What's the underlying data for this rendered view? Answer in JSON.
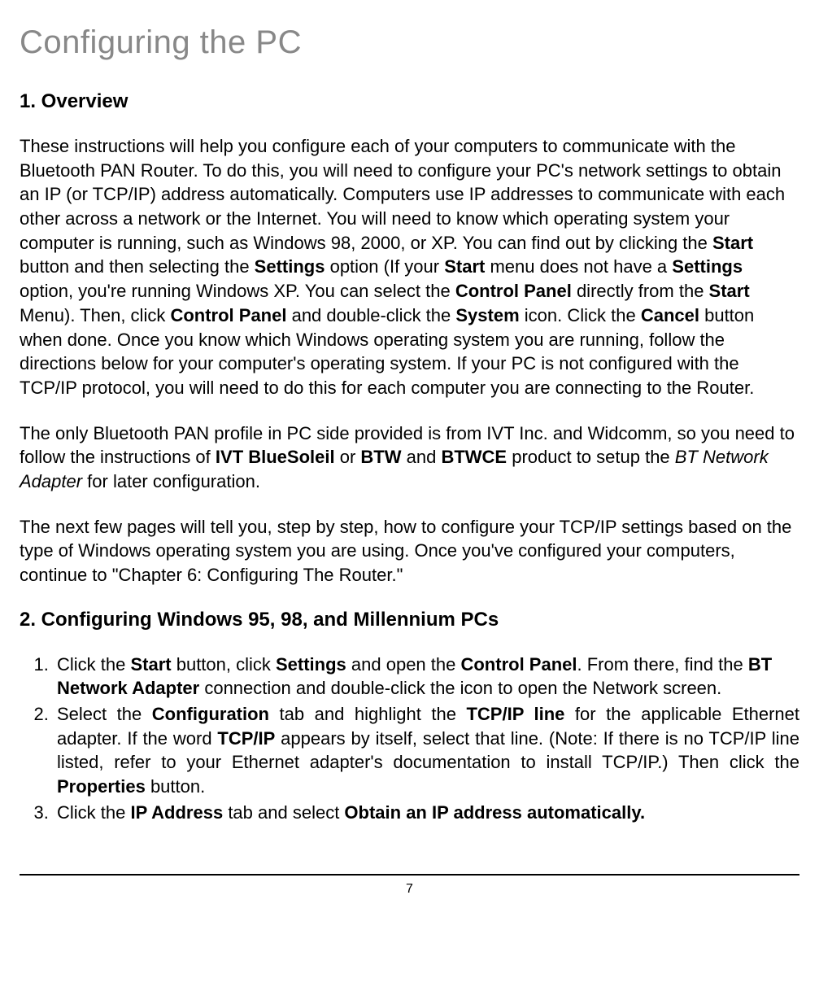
{
  "title": "Configuring the PC",
  "section1": {
    "heading": "1. Overview",
    "para1_parts": [
      {
        "t": "These instructions will help you configure each of your computers to communicate with the Bluetooth PAN Router. To do this, you will need to configure your PC's network settings to obtain an IP (or TCP/IP) address automatically. Computers use IP addresses to communicate with each other across a network or the Internet.   You will need to know which operating system your computer is running, such as Windows 98, 2000, or XP. You can find out by clicking the "
      },
      {
        "t": "Start",
        "b": true
      },
      {
        "t": " button and then selecting the "
      },
      {
        "t": "Settings",
        "b": true
      },
      {
        "t": " option (If your "
      },
      {
        "t": "Start",
        "b": true
      },
      {
        "t": " menu does not have a "
      },
      {
        "t": "Settings",
        "b": true
      },
      {
        "t": " option, you're running Windows XP. You can select the "
      },
      {
        "t": "Control Panel",
        "b": true
      },
      {
        "t": " directly from the "
      },
      {
        "t": "Start",
        "b": true
      },
      {
        "t": " Menu). Then, click "
      },
      {
        "t": "Control Panel",
        "b": true
      },
      {
        "t": " and double-click the "
      },
      {
        "t": "System",
        "b": true
      },
      {
        "t": " icon. Click the "
      },
      {
        "t": "Cancel",
        "b": true
      },
      {
        "t": " button when done. Once you know which Windows operating system you are running, follow the directions below for your computer's operating system. If your PC is not configured with the TCP/IP protocol, you will need to do this for each computer you are connecting to the Router."
      }
    ],
    "para2_parts": [
      {
        "t": "The only Bluetooth PAN profile in PC side provided is from IVT Inc. and Widcomm, so you need to follow the instructions of "
      },
      {
        "t": "IVT BlueSoleil",
        "b": true
      },
      {
        "t": " or "
      },
      {
        "t": "BTW",
        "b": true
      },
      {
        "t": " and "
      },
      {
        "t": "BTWCE",
        "b": true
      },
      {
        "t": " product to setup the "
      },
      {
        "t": "BT Network Adapter",
        "i": true
      },
      {
        "t": " for later configuration."
      }
    ],
    "para3": "The next few pages will tell you, step by step, how to configure your TCP/IP settings based on the type of Windows operating system you are using. Once you've configured your computers, continue to \"Chapter 6: Configuring The Router.\""
  },
  "section2": {
    "heading": "2. Configuring Windows 95, 98, and Millennium PCs",
    "items": [
      {
        "parts": [
          {
            "t": "Click the "
          },
          {
            "t": "Start",
            "b": true
          },
          {
            "t": " button, click "
          },
          {
            "t": "Settings",
            "b": true
          },
          {
            "t": " and open the "
          },
          {
            "t": "Control Panel",
            "b": true
          },
          {
            "t": ". From there, find the "
          },
          {
            "t": "BT Network Adapter",
            "b": true
          },
          {
            "t": " connection and double-click the icon to open the Network screen."
          }
        ]
      },
      {
        "justify": true,
        "parts": [
          {
            "t": "Select the "
          },
          {
            "t": "Configuration",
            "b": true
          },
          {
            "t": " tab and highlight the "
          },
          {
            "t": "TCP/IP line",
            "b": true
          },
          {
            "t": " for the applicable Ethernet adapter. If the word "
          },
          {
            "t": "TCP/IP",
            "b": true
          },
          {
            "t": " appears by itself, select that line. (Note: If there is no TCP/IP line listed, refer to your Ethernet adapter's documentation to install TCP/IP.) Then click the "
          },
          {
            "t": "Properties",
            "b": true
          },
          {
            "t": " button."
          }
        ]
      },
      {
        "parts": [
          {
            "t": "Click the "
          },
          {
            "t": "IP Address",
            "b": true
          },
          {
            "t": " tab and select "
          },
          {
            "t": "Obtain an IP address automatically.",
            "b": true
          }
        ]
      }
    ]
  },
  "page_number": "7",
  "colors": {
    "title_color": "#888888",
    "text_color": "#000000",
    "background": "#ffffff",
    "rule_color": "#000000"
  },
  "typography": {
    "title_fontsize_pt": 30,
    "heading_fontsize_pt": 18,
    "body_fontsize_pt": 16,
    "pagenum_fontsize_pt": 12,
    "title_weight": 300,
    "heading_weight": 700,
    "body_weight": 400
  }
}
